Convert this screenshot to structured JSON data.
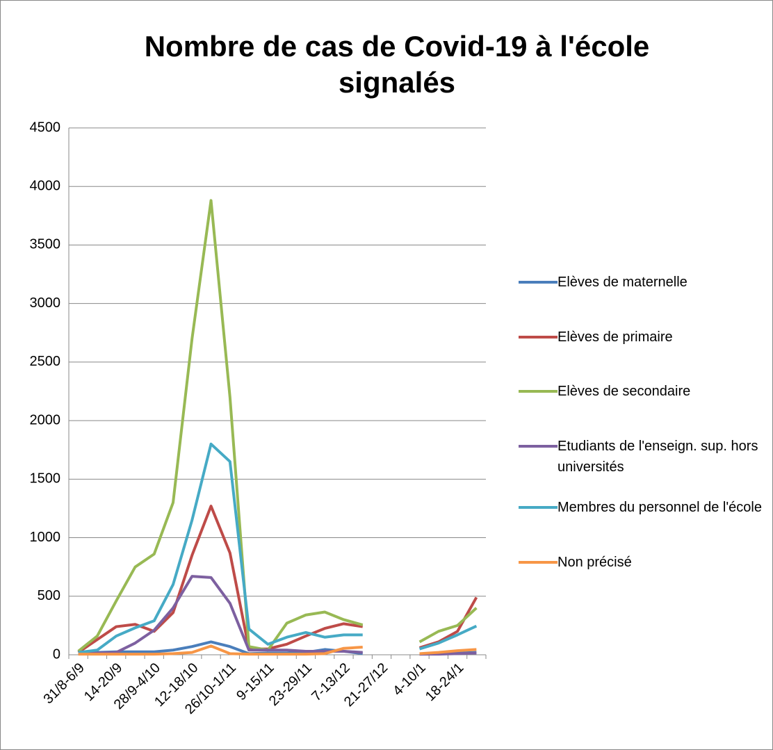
{
  "chart_data": {
    "type": "line",
    "title": "Nombre de cas de Covid-19 à l'école signalés",
    "categories": [
      "31/8-6/9",
      null,
      "14-20/9",
      null,
      "28/9-4/10",
      null,
      "12-18/10",
      null,
      "26/10-1/11",
      null,
      "9-15/11",
      null,
      "23-29/11",
      null,
      "7-13/12",
      null,
      "21-27/12",
      null,
      "4-10/1",
      null,
      "18-24/1",
      null
    ],
    "series": [
      {
        "name": "Elèves de maternelle",
        "color": "#4a7ebb",
        "values": [
          10,
          20,
          25,
          25,
          25,
          40,
          70,
          110,
          70,
          10,
          15,
          15,
          20,
          45,
          30,
          10,
          null,
          null,
          5,
          10,
          15,
          20
        ]
      },
      {
        "name": "Elèves de primaire",
        "color": "#be4b48",
        "values": [
          20,
          130,
          240,
          260,
          200,
          360,
          850,
          1270,
          870,
          50,
          50,
          90,
          160,
          225,
          265,
          240,
          null,
          null,
          60,
          110,
          200,
          490
        ]
      },
      {
        "name": "Elèves de secondaire",
        "color": "#98b954",
        "values": [
          30,
          160,
          460,
          750,
          860,
          1300,
          2700,
          3880,
          2200,
          70,
          40,
          270,
          340,
          365,
          300,
          255,
          null,
          null,
          110,
          200,
          250,
          400
        ]
      },
      {
        "name": "Etudiants de l'enseign. sup. hors universités",
        "color": "#7d60a0",
        "values": [
          10,
          15,
          20,
          100,
          210,
          400,
          670,
          660,
          440,
          40,
          40,
          40,
          30,
          30,
          30,
          20,
          null,
          null,
          5,
          5,
          10,
          15
        ]
      },
      {
        "name": "Membres du personnel de l'école",
        "color": "#46aac5",
        "values": [
          20,
          40,
          160,
          230,
          290,
          600,
          1150,
          1800,
          1650,
          220,
          90,
          150,
          190,
          150,
          170,
          170,
          null,
          null,
          50,
          100,
          170,
          245
        ]
      },
      {
        "name": "Non précisé",
        "color": "#f79646",
        "values": [
          5,
          5,
          5,
          5,
          5,
          10,
          20,
          75,
          10,
          5,
          5,
          5,
          5,
          10,
          55,
          65,
          null,
          null,
          10,
          20,
          35,
          45
        ]
      }
    ],
    "ylim": [
      0,
      4500
    ],
    "yticks": [
      0,
      500,
      1000,
      1500,
      2000,
      2500,
      3000,
      3500,
      4000,
      4500
    ],
    "grid": true
  }
}
